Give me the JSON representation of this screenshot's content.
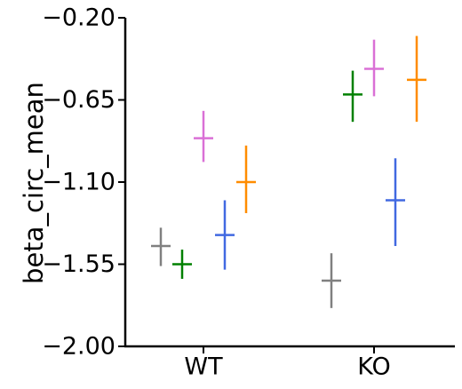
{
  "chart_data": {
    "type": "scatter",
    "title": "",
    "xlabel": "",
    "ylabel": "beta_circ_mean",
    "categories": [
      "WT",
      "KO"
    ],
    "ylim": [
      -2.0,
      -0.2
    ],
    "yticks": [
      "−0.20",
      "−0.65",
      "−1.10",
      "−1.55",
      "−2.00"
    ],
    "ytick_values": [
      -0.2,
      -0.65,
      -1.1,
      -1.55,
      -2.0
    ],
    "grid": false,
    "legend": "none",
    "series": [
      {
        "color": "#808080",
        "values": [
          -1.45,
          -1.64
        ],
        "err_low": [
          -1.56,
          -1.79
        ],
        "err_high": [
          -1.35,
          -1.49
        ]
      },
      {
        "color": "#008000",
        "values": [
          -1.55,
          -0.62
        ],
        "err_low": [
          -1.63,
          -0.77
        ],
        "err_high": [
          -1.47,
          -0.49
        ]
      },
      {
        "color": "#4169e1",
        "values": [
          -1.39,
          -1.2
        ],
        "err_low": [
          -1.58,
          -1.45
        ],
        "err_high": [
          -1.2,
          -0.97
        ]
      },
      {
        "color": "#da70d6",
        "values": [
          -0.86,
          -0.48
        ],
        "err_low": [
          -0.99,
          -0.63
        ],
        "err_high": [
          -0.71,
          -0.32
        ]
      },
      {
        "color": "#ff8c00",
        "values": [
          -1.1,
          -0.54
        ],
        "err_low": [
          -1.27,
          -0.77
        ],
        "err_high": [
          -0.9,
          -0.3
        ]
      }
    ]
  }
}
